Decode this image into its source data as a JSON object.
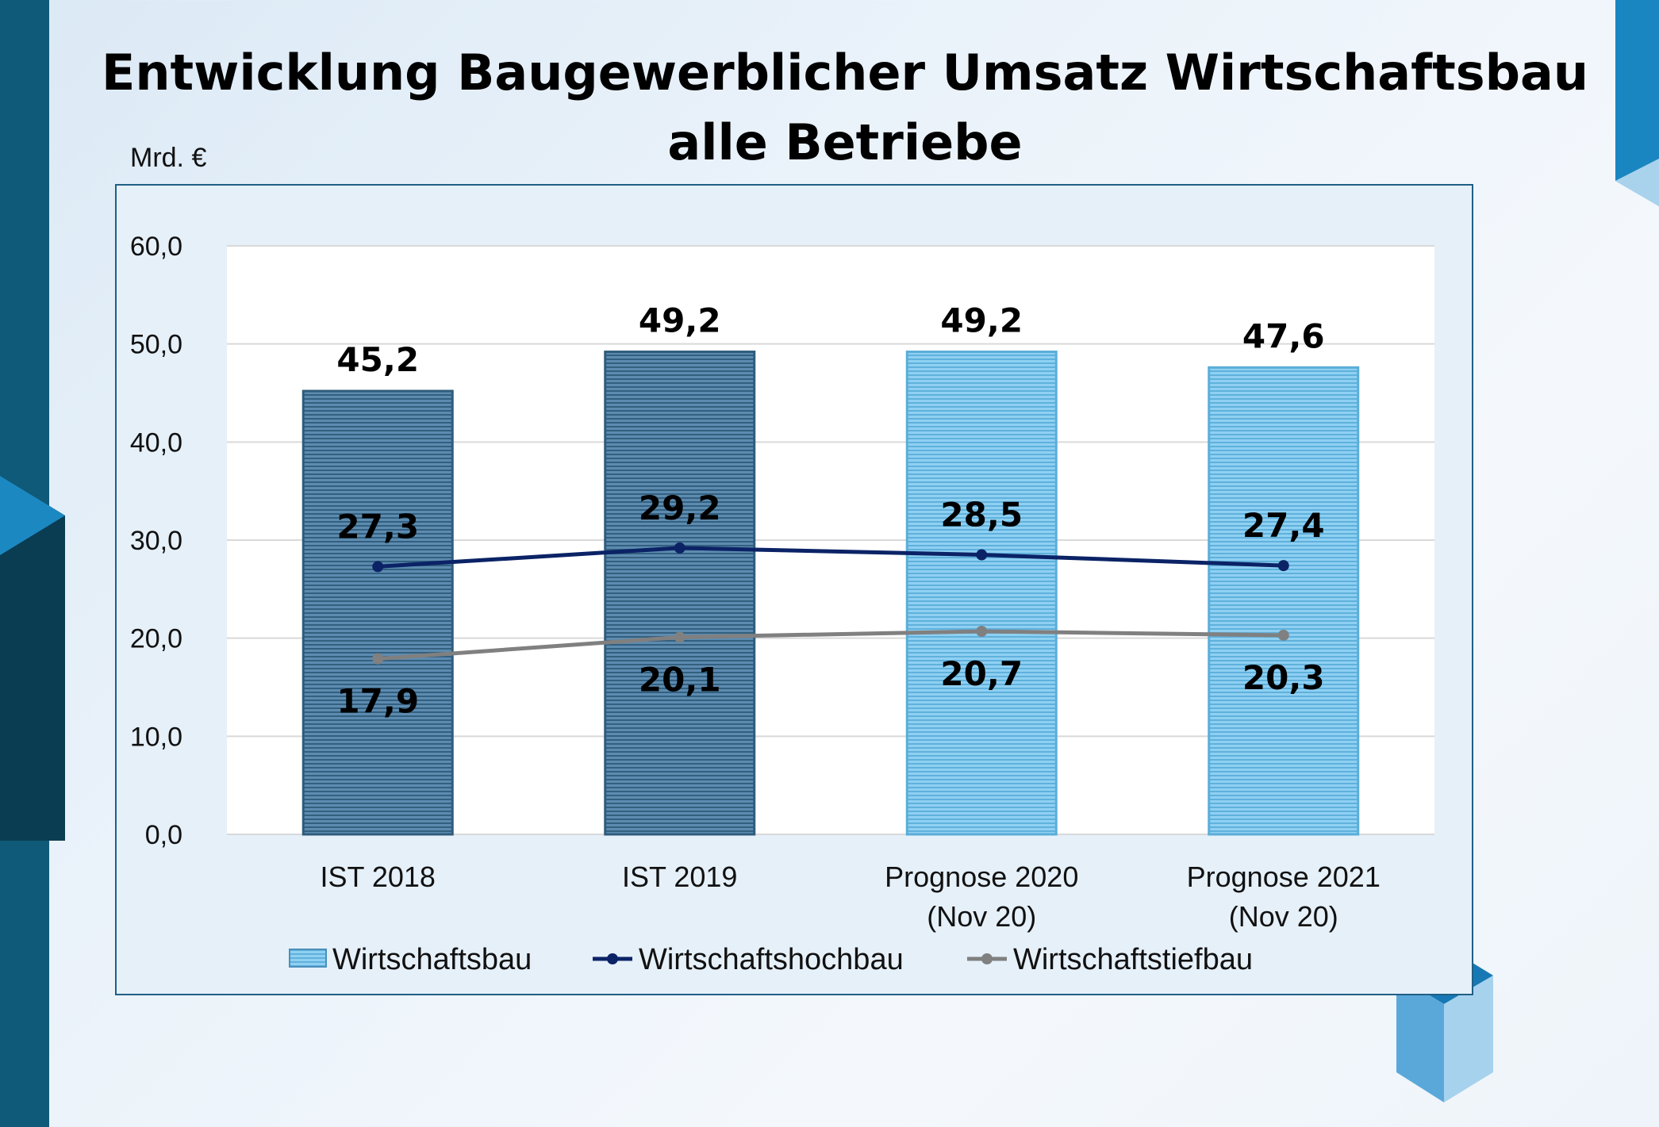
{
  "colors": {
    "bar_ist": "#4f7fa3",
    "bar_prognose": "#7ac2e8",
    "hochbau_line": "#0b2366",
    "tiefbau_line": "#808080",
    "frame": "#1f5f86"
  },
  "chart_data": {
    "type": "bar",
    "title_line1": "Entwicklung Baugewerblicher Umsatz Wirtschaftsbau",
    "title_line2": "alle Betriebe",
    "unit_label": "Mrd. €",
    "categories": [
      [
        "IST 2018"
      ],
      [
        "IST 2019"
      ],
      [
        "Prognose 2020",
        "(Nov 20)"
      ],
      [
        "Prognose 2021",
        "(Nov 20)"
      ]
    ],
    "ylim": [
      0,
      60
    ],
    "yticks": [
      0,
      10,
      20,
      30,
      40,
      50,
      60
    ],
    "ytick_labels": [
      "0,0",
      "10,0",
      "20,0",
      "30,0",
      "40,0",
      "50,0",
      "60,0"
    ],
    "grid": true,
    "legend_position": "bottom",
    "series": [
      {
        "name": "Wirtschaftsbau",
        "kind": "bar",
        "values": [
          45.2,
          49.2,
          49.2,
          47.6
        ],
        "labels": [
          "45,2",
          "49,2",
          "49,2",
          "47,6"
        ]
      },
      {
        "name": "Wirtschaftshochbau",
        "kind": "line",
        "values": [
          27.3,
          29.2,
          28.5,
          27.4
        ],
        "labels": [
          "27,3",
          "29,2",
          "28,5",
          "27,4"
        ]
      },
      {
        "name": "Wirtschaftstiefbau",
        "kind": "line",
        "values": [
          17.9,
          20.1,
          20.7,
          20.3
        ],
        "labels": [
          "17,9",
          "20,1",
          "20,7",
          "20,3"
        ]
      }
    ]
  }
}
